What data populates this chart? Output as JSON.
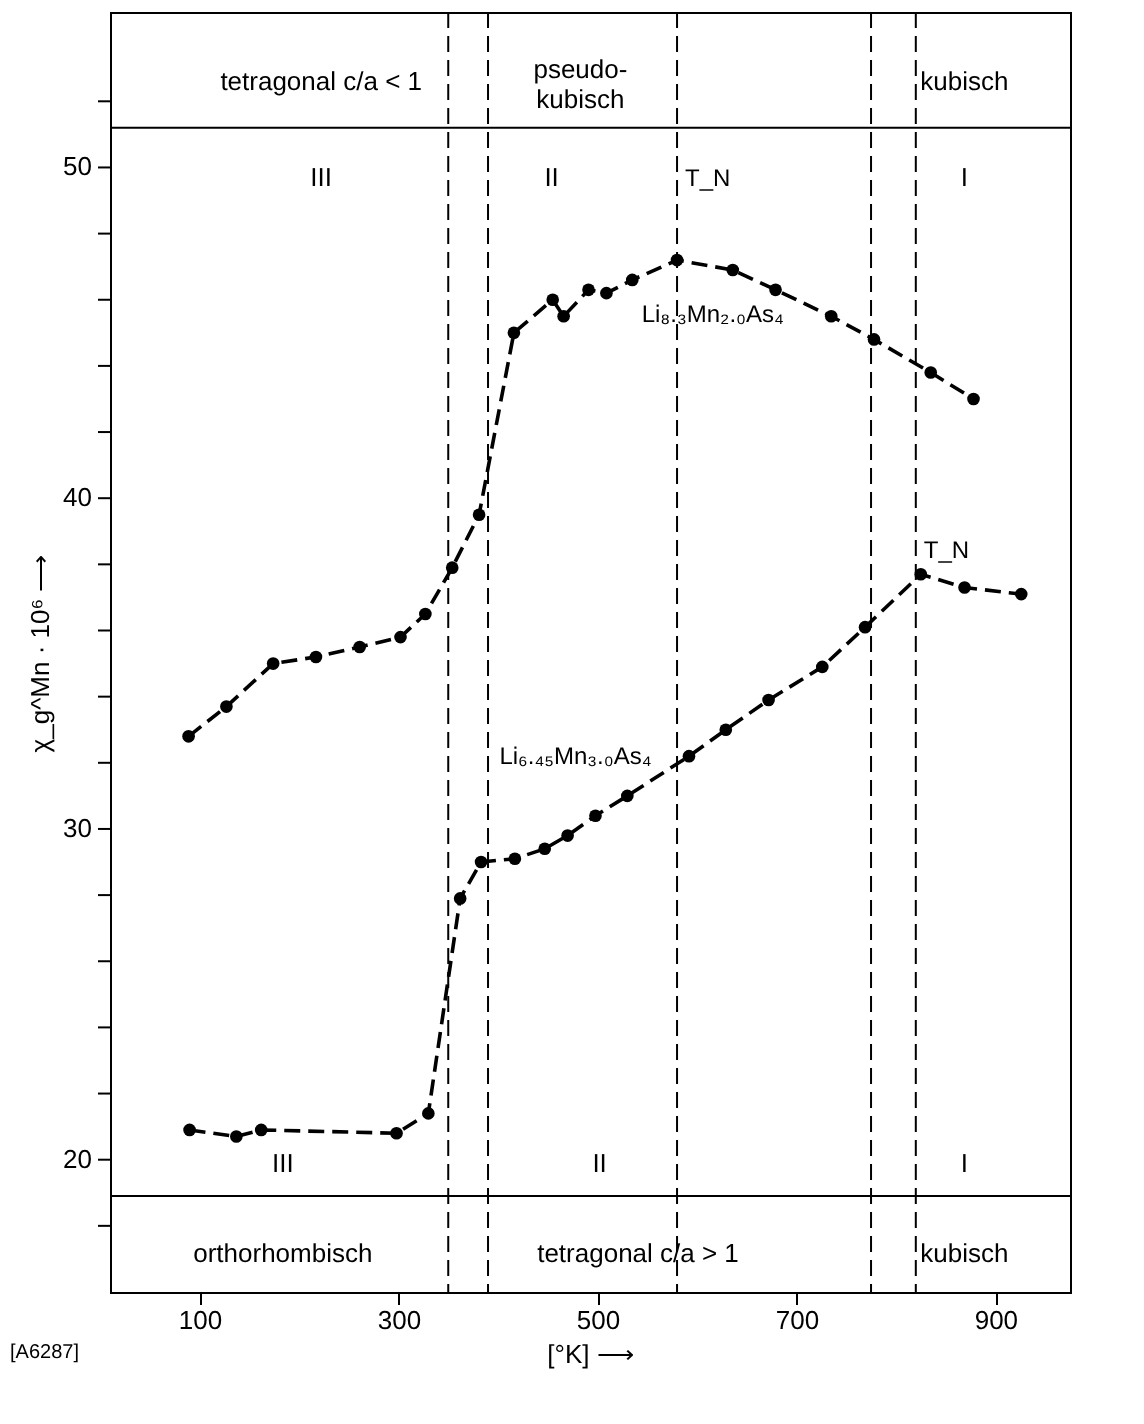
{
  "chart_data": {
    "type": "line",
    "xlabel": "[°K] ⟶",
    "ylabel": "χ_g^Mn · 10⁶ ⟶",
    "marker": "circle",
    "line_style": "dashed",
    "grid": false,
    "legend": false,
    "xlim": [
      10,
      975
    ],
    "xticks": [
      100,
      300,
      500,
      700,
      900
    ],
    "ylim": [
      16,
      54.7
    ],
    "yticks": [
      {
        "value": 18,
        "label": null
      },
      20,
      {
        "value": 22,
        "label": null
      },
      {
        "value": 24,
        "label": null
      },
      {
        "value": 26,
        "label": null
      },
      {
        "value": 28,
        "label": null
      },
      30,
      {
        "value": 32,
        "label": null
      },
      {
        "value": 34,
        "label": null
      },
      {
        "value": 36,
        "label": null
      },
      {
        "value": 38,
        "label": null
      },
      40,
      {
        "value": 42,
        "label": null
      },
      {
        "value": 44,
        "label": null
      },
      {
        "value": 46,
        "label": null
      },
      {
        "value": 48,
        "label": null
      },
      50,
      {
        "value": 52,
        "label": null
      }
    ],
    "series": [
      {
        "name": "Li₈.₃Mn₂.₀As₄",
        "color": "#000000",
        "x": [
          89,
          127,
          174,
          217,
          261,
          302,
          327,
          354,
          381,
          416,
          455,
          466,
          491,
          509,
          535,
          580,
          636,
          679,
          735,
          778,
          835,
          878
        ],
        "values": [
          32.8,
          33.7,
          35.0,
          35.2,
          35.5,
          35.8,
          36.5,
          37.9,
          39.5,
          45.0,
          46.0,
          45.5,
          46.3,
          46.2,
          46.6,
          47.2,
          46.9,
          46.3,
          45.5,
          44.8,
          43.8,
          43.0
        ]
      },
      {
        "name": "Li₆.₄₅Mn₃.₀As₄",
        "color": "#000000",
        "x": [
          90,
          137,
          162,
          298,
          330,
          362,
          383,
          417,
          447,
          470,
          498,
          530,
          592,
          629,
          672,
          726,
          769,
          825,
          869,
          926
        ],
        "values": [
          20.9,
          20.7,
          20.9,
          20.8,
          21.4,
          27.9,
          29.0,
          29.1,
          29.4,
          29.8,
          30.4,
          31.0,
          32.2,
          33.0,
          33.9,
          34.9,
          36.1,
          37.7,
          37.3,
          37.1
        ]
      }
    ],
    "ref_lines": [
      {
        "axis": "y",
        "value": 51.2,
        "line_style": "solid",
        "color": "#000000"
      },
      {
        "axis": "y",
        "value": 18.9,
        "line_style": "solid",
        "color": "#000000"
      },
      {
        "axis": "x",
        "value": 390,
        "line_style": "dashed",
        "color": "#000000"
      },
      {
        "axis": "x",
        "value": 350,
        "line_style": "dashed",
        "color": "#000000"
      },
      {
        "axis": "x",
        "value": 775,
        "line_style": "dashed",
        "color": "#000000"
      },
      {
        "axis": "x",
        "value": 580,
        "line_style": "dashed",
        "color": "#000000",
        "label": "T_N"
      },
      {
        "axis": "x",
        "value": 820,
        "line_style": "dashed",
        "color": "#000000",
        "label": "T_N"
      }
    ],
    "annotations": [
      "tetragonal c/a < 1",
      "pseudo-\nkubisch",
      "kubisch",
      "III",
      "II",
      "I",
      "III",
      "II",
      "I",
      "orthorhombisch",
      "tetragonal c/a > 1",
      "kubisch",
      "[A6287]"
    ]
  }
}
